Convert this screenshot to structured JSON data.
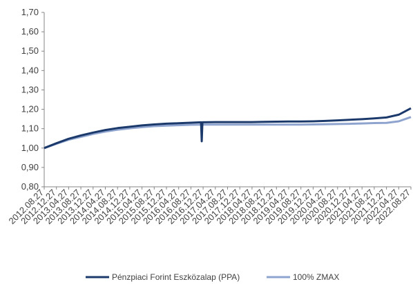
{
  "chart_data": {
    "type": "line",
    "title": "",
    "xlabel": "",
    "ylabel": "",
    "ylim": [
      0.8,
      1.7
    ],
    "yticks": [
      "1,70",
      "1,60",
      "1,50",
      "1,40",
      "1,30",
      "1,20",
      "1,10",
      "1,00",
      "0,90",
      "0,80"
    ],
    "grid": false,
    "legend_position": "bottom",
    "x": [
      "2012.08.27",
      "2012.12.27",
      "2013.04.27",
      "2013.08.27",
      "2013.12.27",
      "2014.04.27",
      "2014.08.27",
      "2014.12.27",
      "2015.04.27",
      "2015.08.27",
      "2015.12.27",
      "2016.04.27",
      "2016.08.27",
      "2016.12.27",
      "2017.04.27",
      "2017.08.27",
      "2017.12.27",
      "2018.04.27",
      "2018.08.27",
      "2018.12.27",
      "2019.04.27",
      "2019.08.27",
      "2019.12.27",
      "2020.04.27",
      "2020.08.27",
      "2020.12.27",
      "2021.04.27",
      "2021.08.27",
      "2021.12.27",
      "2022.04.27",
      "2022.08.27"
    ],
    "series": [
      {
        "name": "Pénzpiaci Forint Eszközalap (PPA)",
        "color": "#1b3a6b",
        "values": [
          1.0,
          1.025,
          1.048,
          1.065,
          1.08,
          1.093,
          1.103,
          1.11,
          1.117,
          1.122,
          1.126,
          1.128,
          1.131,
          1.133,
          1.134,
          1.134,
          1.134,
          1.134,
          1.135,
          1.136,
          1.137,
          1.137,
          1.138,
          1.14,
          1.143,
          1.146,
          1.149,
          1.153,
          1.158,
          1.172,
          1.205
        ]
      },
      {
        "name": "100% ZMAX",
        "color": "#8ea4cf",
        "values": [
          1.0,
          1.022,
          1.043,
          1.058,
          1.073,
          1.085,
          1.095,
          1.102,
          1.108,
          1.113,
          1.116,
          1.118,
          1.12,
          1.121,
          1.121,
          1.121,
          1.121,
          1.121,
          1.121,
          1.121,
          1.121,
          1.121,
          1.122,
          1.123,
          1.124,
          1.125,
          1.127,
          1.129,
          1.13,
          1.138,
          1.16
        ]
      }
    ],
    "annotations": [
      {
        "series": 0,
        "x": "2016.12.27",
        "y": 1.035,
        "note": "dip"
      }
    ]
  }
}
